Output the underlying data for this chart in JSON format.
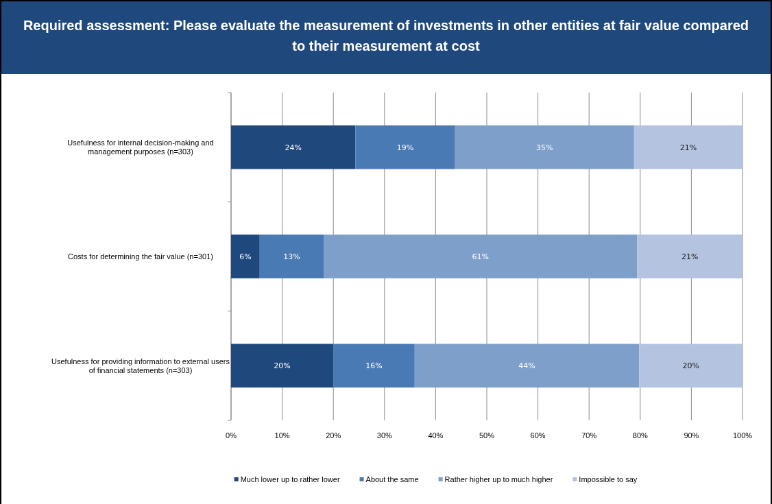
{
  "chart_data": {
    "type": "bar",
    "orientation": "horizontal",
    "stacked": true,
    "title": "Required assessment:  Please evaluate the measurement of investments in other entities at fair value compared to their measurement at cost",
    "categories": [
      "Usefulness for internal decision-making and management purposes  (n=303)",
      "Costs for determining the fair value (n=301)",
      "Usefulness for providing information to external users of financial statements (n=303)"
    ],
    "series": [
      {
        "name": "Much lower up to rather lower",
        "color": "#1f497d",
        "values": [
          24.3,
          5.6,
          20.0
        ],
        "value_labels": [
          "24%",
          "6%",
          "20%"
        ]
      },
      {
        "name": "About the same",
        "color": "#4a7ab4",
        "values": [
          19.5,
          12.5,
          15.9
        ],
        "value_labels": [
          "19%",
          "13%",
          "16%"
        ]
      },
      {
        "name": "Rather higher up to much higher",
        "color": "#7f9fcb",
        "values": [
          35.0,
          61.3,
          43.9
        ],
        "value_labels": [
          "35%",
          "61%",
          "44%"
        ]
      },
      {
        "name": "Impossible to say",
        "color": "#b3c3e0",
        "values": [
          21.2,
          20.6,
          20.2
        ],
        "value_labels": [
          "21%",
          "21%",
          "20%"
        ]
      }
    ],
    "xlim": [
      0,
      100
    ],
    "xticks": [
      {
        "value": 0,
        "label": "0%"
      },
      {
        "value": 10,
        "label": "10%"
      },
      {
        "value": 20,
        "label": "20%"
      },
      {
        "value": 30,
        "label": "30%"
      },
      {
        "value": 40,
        "label": "40%"
      },
      {
        "value": 50,
        "label": "50%"
      },
      {
        "value": 60,
        "label": "60%"
      },
      {
        "value": 70,
        "label": "70%"
      },
      {
        "value": 80,
        "label": "80%"
      },
      {
        "value": 90,
        "label": "90%"
      },
      {
        "value": 100,
        "label": "100%"
      }
    ],
    "grid": "x",
    "legend": "bottom"
  }
}
